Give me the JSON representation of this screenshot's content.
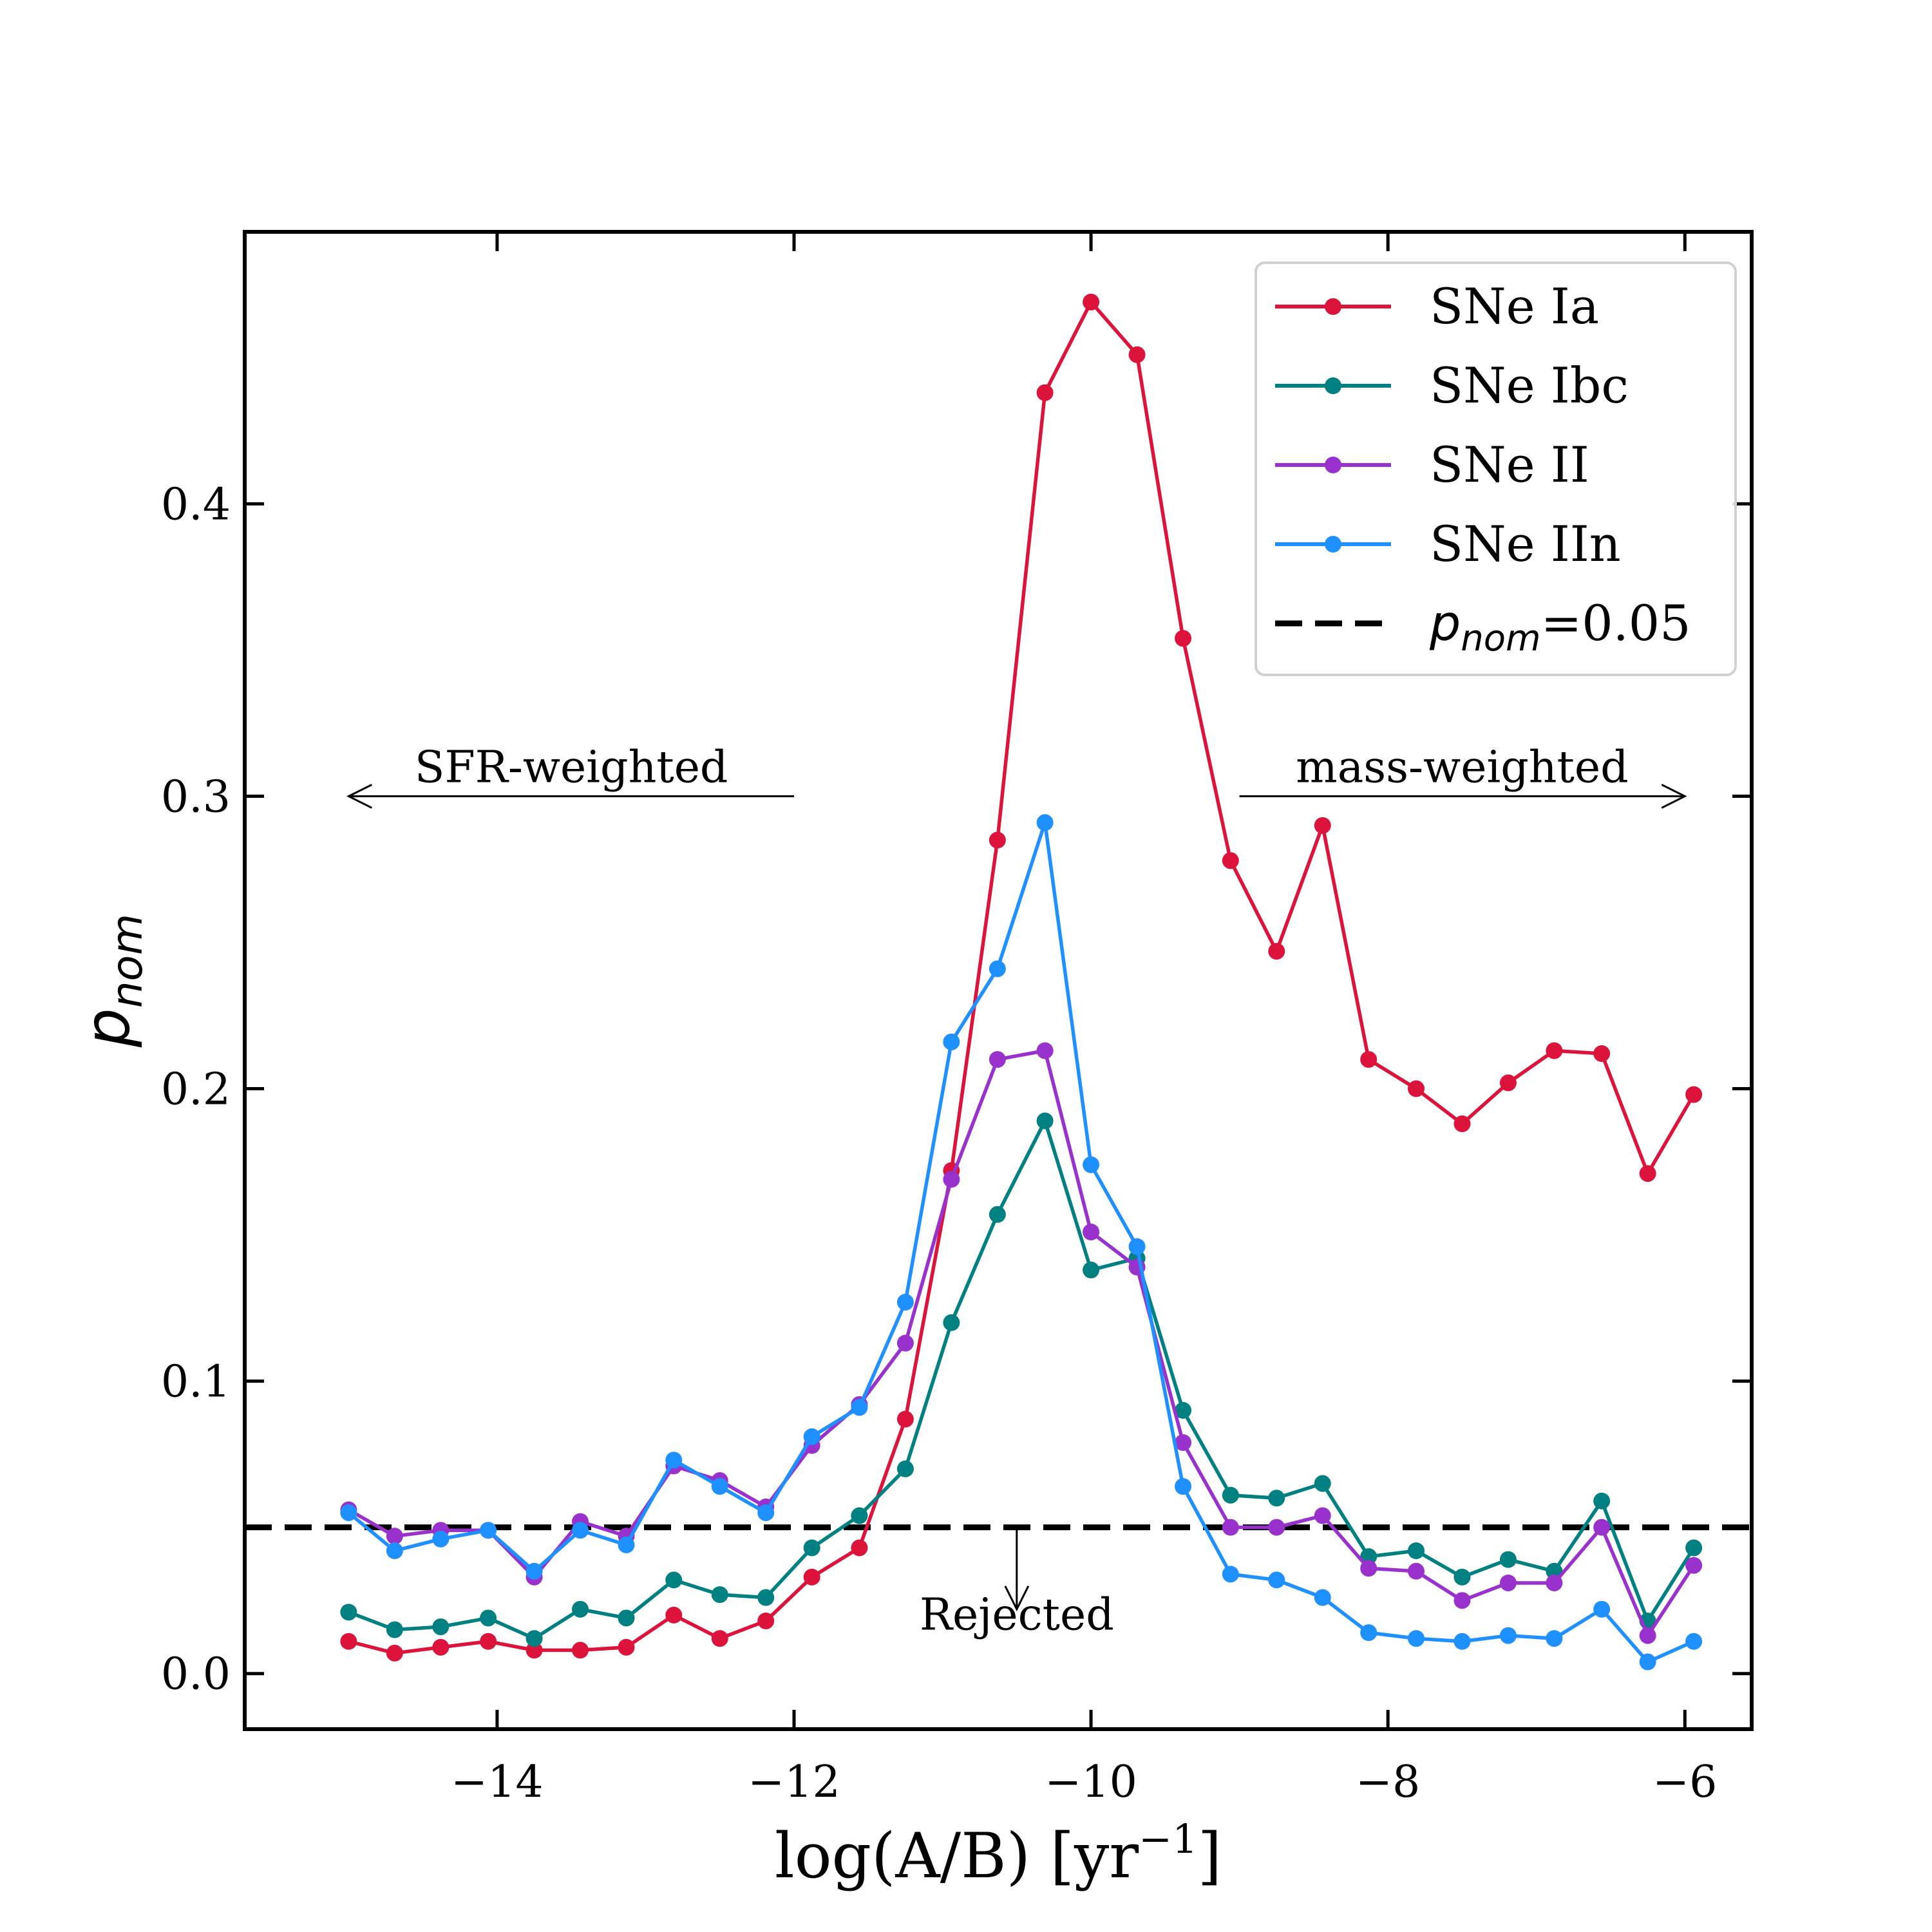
{
  "chart_data": {
    "type": "line",
    "xlabel": "log(A/B) [yr",
    "xlabel_sup": "−1",
    "xlabel_end": "]",
    "ylabel_base": "p",
    "ylabel_sub": "nom",
    "xlim": [
      -15.7,
      -5.55
    ],
    "ylim": [
      -0.019,
      0.493
    ],
    "xticks": [
      -14,
      -12,
      -10,
      -8,
      -6
    ],
    "xtick_labels": [
      "−14",
      "−12",
      "−10",
      "−8",
      "−6"
    ],
    "yticks": [
      0.0,
      0.1,
      0.2,
      0.3,
      0.4
    ],
    "ytick_labels": [
      "0.0",
      "0.1",
      "0.2",
      "0.3",
      "0.4"
    ],
    "legend_position": "top-right",
    "x": [
      -15.0,
      -14.69,
      -14.38,
      -14.06,
      -13.75,
      -13.44,
      -13.13,
      -12.81,
      -12.5,
      -12.19,
      -11.88,
      -11.56,
      -11.25,
      -10.94,
      -10.63,
      -10.31,
      -10.0,
      -9.69,
      -9.38,
      -9.06,
      -8.75,
      -8.44,
      -8.13,
      -7.81,
      -7.5,
      -7.19,
      -6.88,
      -6.56,
      -6.25,
      -5.94
    ],
    "series": [
      {
        "name": "SNe Ia",
        "color": "#dc143c",
        "values": [
          0.011,
          0.007,
          0.009,
          0.011,
          0.008,
          0.008,
          0.009,
          0.02,
          0.012,
          0.018,
          0.033,
          0.043,
          0.087,
          0.172,
          0.285,
          0.438,
          0.469,
          0.451,
          0.354,
          0.278,
          0.247,
          0.29,
          0.21,
          0.2,
          0.188,
          0.202,
          0.213,
          0.212,
          0.171,
          0.198
        ]
      },
      {
        "name": "SNe Ibc",
        "color": "#008080",
        "values": [
          0.021,
          0.015,
          0.016,
          0.019,
          0.012,
          0.022,
          0.019,
          0.032,
          0.027,
          0.026,
          0.043,
          0.054,
          0.07,
          0.12,
          0.157,
          0.189,
          0.138,
          0.142,
          0.09,
          0.061,
          0.06,
          0.065,
          0.04,
          0.042,
          0.033,
          0.039,
          0.035,
          0.059,
          0.018,
          0.043
        ]
      },
      {
        "name": "SNe II",
        "color": "#9932cc",
        "values": [
          0.056,
          0.047,
          0.049,
          0.049,
          0.033,
          0.052,
          0.047,
          0.071,
          0.066,
          0.057,
          0.078,
          0.092,
          0.113,
          0.169,
          0.21,
          0.213,
          0.151,
          0.139,
          0.079,
          0.05,
          0.05,
          0.054,
          0.036,
          0.035,
          0.025,
          0.031,
          0.031,
          0.05,
          0.013,
          0.037
        ]
      },
      {
        "name": "SNe IIn",
        "color": "#1e90ff",
        "values": [
          0.055,
          0.042,
          0.046,
          0.049,
          0.035,
          0.049,
          0.044,
          0.073,
          0.064,
          0.055,
          0.081,
          0.091,
          0.127,
          0.216,
          0.241,
          0.291,
          0.174,
          0.146,
          0.064,
          0.034,
          0.032,
          0.026,
          0.014,
          0.012,
          0.011,
          0.013,
          0.012,
          0.022,
          0.004,
          0.011
        ]
      }
    ],
    "threshold": {
      "value": 0.05,
      "label_base": "p",
      "label_sub": "nom",
      "label_value": "=0.05",
      "color": "#000000"
    },
    "annotations": {
      "sfr": {
        "text": "SFR-weighted",
        "x": -13.5,
        "y": 0.3,
        "arrow_from": -12.0,
        "arrow_to": -15.0
      },
      "mass": {
        "text": "mass-weighted",
        "x": -7.5,
        "y": 0.3,
        "arrow_from": -9.0,
        "arrow_to": -6.0
      },
      "rejected": {
        "text": "Rejected",
        "x": -10.5,
        "y": 0.015,
        "arrow_from": 0.05,
        "arrow_to": 0.022
      }
    }
  }
}
